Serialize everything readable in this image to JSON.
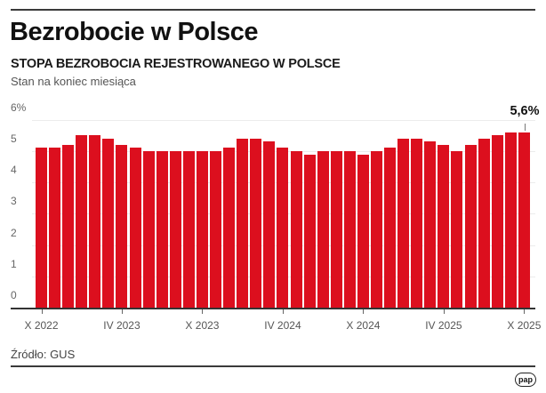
{
  "header": {
    "title": "Bezrobocie w Polsce",
    "subtitle": "STOPA BEZROBOCIA REJESTROWANEGO W POLSCE",
    "note": "Stan na koniec miesiąca"
  },
  "footer": {
    "source": "Źródło: GUS",
    "logo": "pap"
  },
  "colors": {
    "bar": "#dc0f1e",
    "axis": "#333333",
    "grid": "#ececec"
  },
  "chart_data": {
    "type": "bar",
    "title": "STOPA BEZROBOCIA REJESTROWANEGO W POLSCE",
    "subtitle": "Stan na koniec miesiąca",
    "xlabel": "",
    "ylabel": "%",
    "ylim": [
      0,
      6
    ],
    "yticks": [
      "0",
      "1",
      "2",
      "3",
      "4",
      "5",
      "6%"
    ],
    "grid": true,
    "legend": null,
    "categories": [
      "X 2022",
      "XI 2022",
      "XII 2022",
      "I 2023",
      "II 2023",
      "III 2023",
      "IV 2023",
      "V 2023",
      "VI 2023",
      "VII 2023",
      "VIII 2023",
      "IX 2023",
      "X 2023",
      "XI 2023",
      "XII 2023",
      "I 2024",
      "II 2024",
      "III 2024",
      "IV 2024",
      "V 2024",
      "VI 2024",
      "VII 2024",
      "VIII 2024",
      "IX 2024",
      "X 2024",
      "XI 2024",
      "XII 2024",
      "I 2025",
      "II 2025",
      "III 2025",
      "IV 2025",
      "V 2025",
      "VI 2025",
      "VII 2025",
      "VIII 2025",
      "IX 2025",
      "X 2025"
    ],
    "values": [
      5.1,
      5.1,
      5.2,
      5.5,
      5.5,
      5.4,
      5.2,
      5.1,
      5.0,
      5.0,
      5.0,
      5.0,
      5.0,
      5.0,
      5.1,
      5.4,
      5.4,
      5.3,
      5.1,
      5.0,
      4.9,
      5.0,
      5.0,
      5.0,
      4.9,
      5.0,
      5.1,
      5.4,
      5.4,
      5.3,
      5.2,
      5.0,
      5.2,
      5.4,
      5.5,
      5.6,
      5.6
    ],
    "xtick_labels": [
      {
        "label": "X 2022",
        "index": 0
      },
      {
        "label": "IV 2023",
        "index": 6
      },
      {
        "label": "X 2023",
        "index": 12
      },
      {
        "label": "IV 2024",
        "index": 18
      },
      {
        "label": "X 2024",
        "index": 24
      },
      {
        "label": "IV 2025",
        "index": 30
      },
      {
        "label": "X 2025",
        "index": 36
      }
    ],
    "annotations": [
      {
        "index": 36,
        "text": "5,6%"
      }
    ]
  }
}
